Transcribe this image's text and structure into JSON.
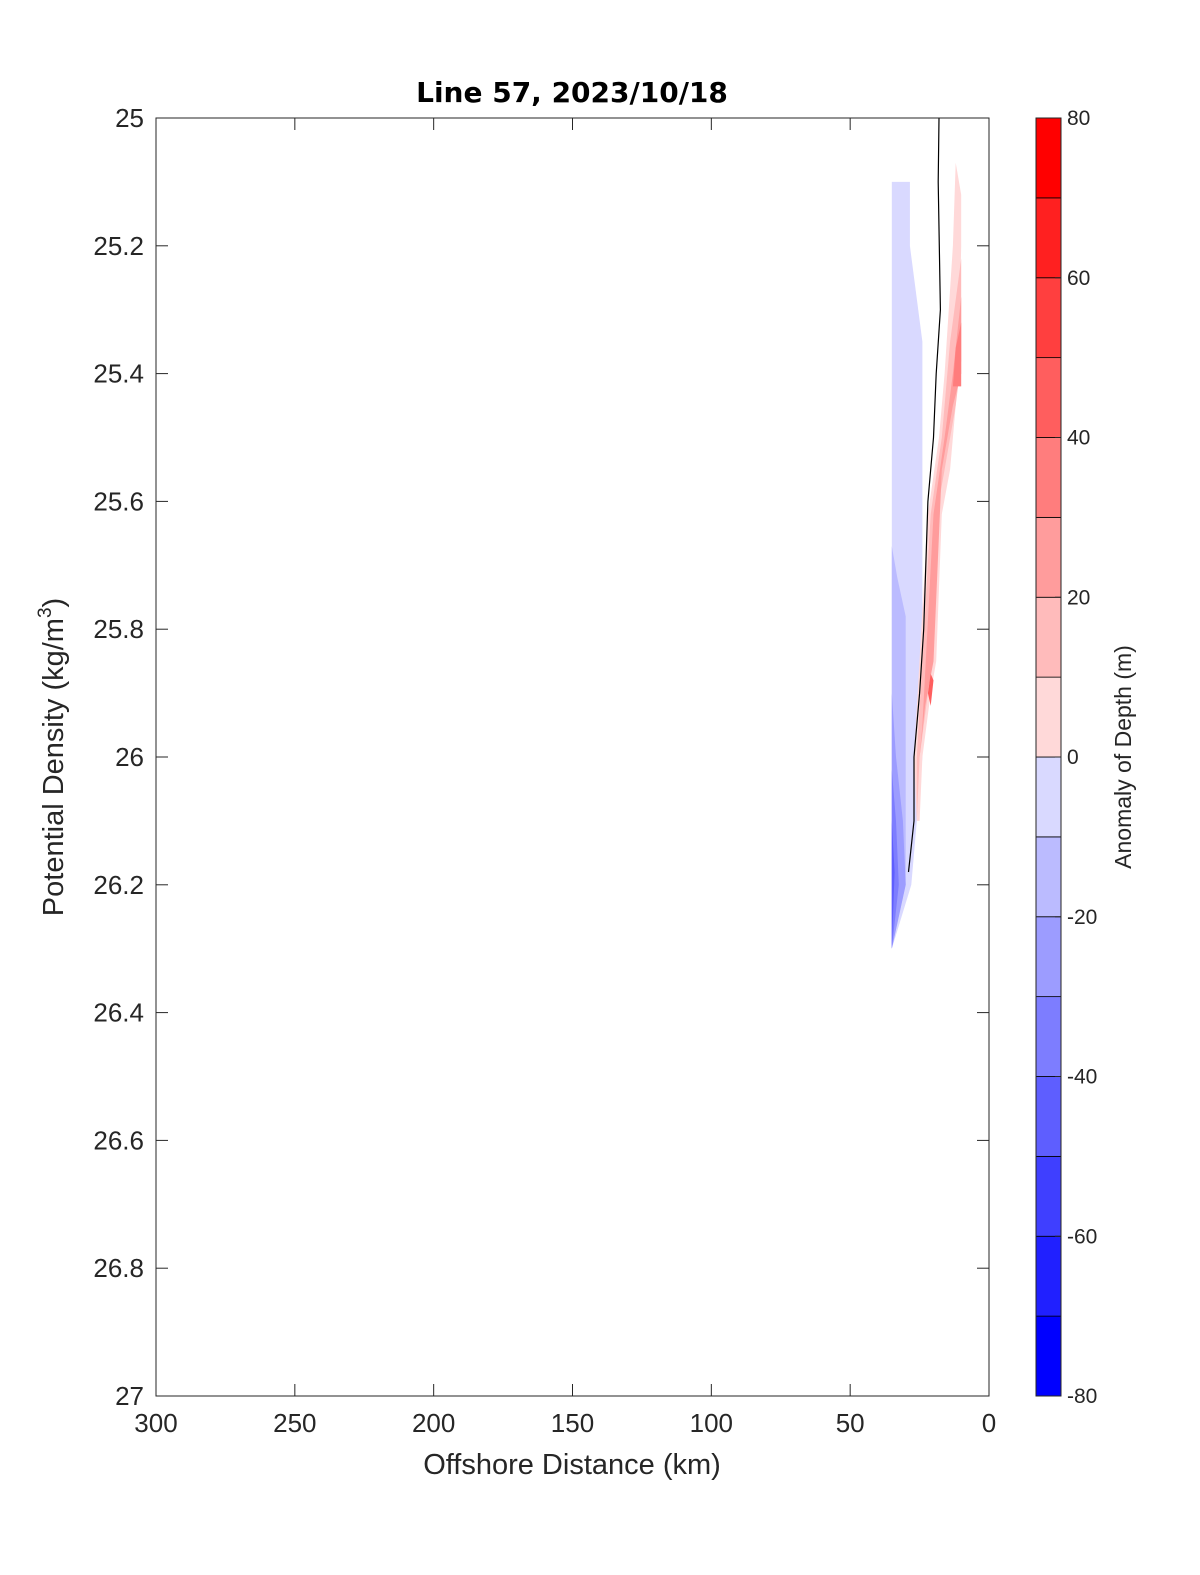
{
  "chart_data": {
    "type": "heatmap",
    "title": "Line 57, 2023/10/18",
    "xlabel": "Offshore Distance (km)",
    "ylabel_main": "Potential Density (kg/m",
    "ylabel_sup": "3",
    "ylabel_end": ")",
    "xlim": [
      300,
      0
    ],
    "x_reversed": true,
    "ylim": [
      25,
      27
    ],
    "y_reversed": true,
    "x_ticks": [
      300,
      250,
      200,
      150,
      100,
      50,
      0
    ],
    "x_tick_labels": [
      "300",
      "250",
      "200",
      "150",
      "100",
      "50",
      "0"
    ],
    "y_ticks": [
      25,
      25.2,
      25.4,
      25.6,
      25.8,
      26,
      26.2,
      26.4,
      26.6,
      26.8,
      27
    ],
    "y_tick_labels": [
      "25",
      "25.2",
      "25.4",
      "25.6",
      "25.8",
      "26",
      "26.2",
      "26.4",
      "26.6",
      "26.8",
      "27"
    ],
    "grid": false,
    "colorbar": {
      "label": "Anomaly of Depth (m)",
      "range": [
        -80,
        80
      ],
      "levels": [
        -80,
        -70,
        -60,
        -50,
        -40,
        -30,
        -20,
        -10,
        0,
        10,
        20,
        30,
        40,
        50,
        60,
        70,
        80
      ],
      "colors": [
        "#0000ff",
        "#2020ff",
        "#3f3fff",
        "#5e5eff",
        "#7d7dff",
        "#9c9cff",
        "#bbbbff",
        "#d9d9ff",
        "#ffffff",
        "#ffd9d9",
        "#ffbbbb",
        "#ff9c9c",
        "#ff7d7d",
        "#ff5e5e",
        "#ff3f3f",
        "#ff2020",
        "#ff0000"
      ],
      "ticks": [
        80,
        60,
        40,
        20,
        0,
        -20,
        -40,
        -60,
        -80
      ],
      "tick_labels": [
        "80",
        "60",
        "40",
        "20",
        "0",
        "-20",
        "-40",
        "-60",
        "-80"
      ]
    },
    "regions": [
      {
        "anomaly": -15,
        "color": "#d9d9ff",
        "points": [
          [
            35,
            25.1
          ],
          [
            28.5,
            25.1
          ],
          [
            28.5,
            25.2
          ],
          [
            24,
            25.35
          ],
          [
            24,
            26.0
          ],
          [
            28,
            26.2
          ],
          [
            35,
            26.3
          ]
        ]
      },
      {
        "anomaly": -25,
        "color": "#bbbbff",
        "points": [
          [
            35,
            25.67
          ],
          [
            33,
            25.72
          ],
          [
            30,
            25.78
          ],
          [
            30,
            26.2
          ],
          [
            35,
            26.3
          ]
        ]
      },
      {
        "anomaly": -35,
        "color": "#9c9cff",
        "points": [
          [
            35,
            25.9
          ],
          [
            33.5,
            26.0
          ],
          [
            31,
            26.1
          ],
          [
            30,
            26.2
          ],
          [
            35,
            26.3
          ]
        ]
      },
      {
        "anomaly": -45,
        "color": "#7d7dff",
        "points": [
          [
            35,
            26.02
          ],
          [
            33.5,
            26.1
          ],
          [
            32.5,
            26.2
          ],
          [
            35,
            26.3
          ]
        ]
      },
      {
        "anomaly": -55,
        "color": "#5e5eff",
        "points": [
          [
            35,
            26.1
          ],
          [
            34,
            26.18
          ],
          [
            35,
            26.3
          ]
        ]
      },
      {
        "anomaly": 15,
        "color": "#ffd9d9",
        "points": [
          [
            12,
            25.07
          ],
          [
            10,
            25.12
          ],
          [
            10,
            25.2
          ],
          [
            11,
            25.4
          ],
          [
            14,
            25.55
          ],
          [
            17,
            25.62
          ],
          [
            19,
            25.85
          ],
          [
            21,
            25.9
          ],
          [
            24,
            26.0
          ],
          [
            25,
            26.1
          ],
          [
            26,
            26.1
          ],
          [
            27,
            26.0
          ],
          [
            22,
            25.62
          ],
          [
            18,
            25.5
          ],
          [
            16,
            25.4
          ],
          [
            13,
            25.2
          ]
        ]
      },
      {
        "anomaly": 25,
        "color": "#ffbbbb",
        "points": [
          [
            10,
            25.22
          ],
          [
            10,
            25.38
          ],
          [
            12,
            25.45
          ],
          [
            16,
            25.55
          ],
          [
            18,
            25.6
          ],
          [
            20,
            25.82
          ],
          [
            22,
            25.9
          ],
          [
            25,
            26.0
          ],
          [
            26,
            26.1
          ],
          [
            26,
            26.0
          ],
          [
            21,
            25.62
          ],
          [
            17,
            25.5
          ],
          [
            14,
            25.35
          ]
        ]
      },
      {
        "anomaly": 35,
        "color": "#ff9c9c",
        "points": [
          [
            10,
            25.28
          ],
          [
            10,
            25.4
          ],
          [
            13,
            25.45
          ],
          [
            17,
            25.55
          ],
          [
            20,
            25.85
          ],
          [
            23,
            25.92
          ],
          [
            25,
            26.0
          ],
          [
            24,
            25.95
          ],
          [
            20,
            25.62
          ],
          [
            16,
            25.5
          ],
          [
            13,
            25.4
          ]
        ]
      },
      {
        "anomaly": 45,
        "color": "#ff7d7d",
        "points": [
          [
            10,
            25.32
          ],
          [
            10,
            25.42
          ],
          [
            13,
            25.42
          ],
          [
            12,
            25.36
          ]
        ]
      },
      {
        "anomaly": 55,
        "color": "#ff5e5e",
        "points": [
          [
            20,
            25.88
          ],
          [
            21,
            25.92
          ],
          [
            22,
            25.9
          ],
          [
            21,
            25.87
          ]
        ]
      }
    ],
    "zero_contour": [
      [
        18,
        25.0
      ],
      [
        18.3,
        25.1
      ],
      [
        17.5,
        25.3
      ],
      [
        19,
        25.4
      ],
      [
        20,
        25.5
      ],
      [
        22,
        25.6
      ],
      [
        23.5,
        25.8
      ],
      [
        25,
        25.9
      ],
      [
        27,
        26.0
      ],
      [
        27,
        26.1
      ],
      [
        29,
        26.18
      ]
    ]
  }
}
